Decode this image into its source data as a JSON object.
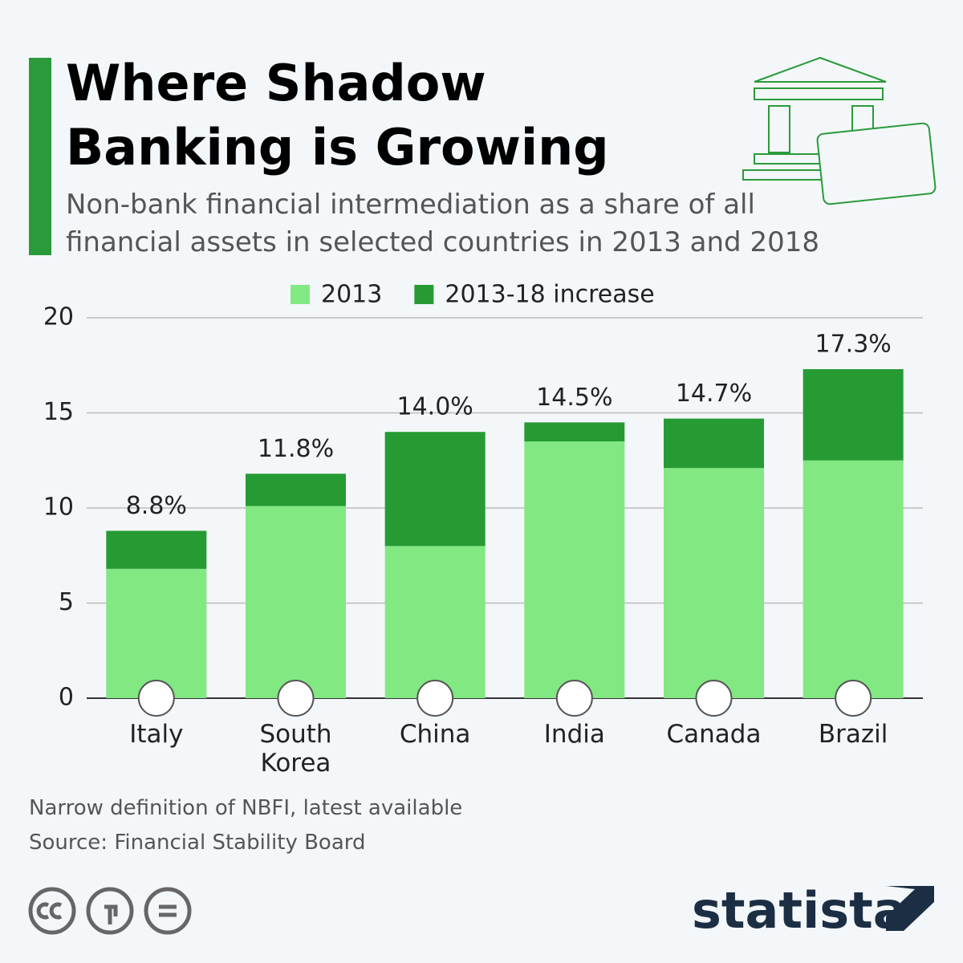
{
  "title": "Where Shadow Banking is Growing",
  "subtitle": "Non-bank financial intermediation as a share of all financial assets in selected countries in 2013 and 2018",
  "chart_data": {
    "type": "stacked_bar",
    "categories": [
      "Italy",
      "South Korea",
      "China",
      "India",
      "Canada",
      "Brazil"
    ],
    "series": [
      {
        "name": "2013",
        "color": "#82e882",
        "values": [
          6.8,
          10.1,
          8.0,
          13.5,
          12.1,
          12.5
        ]
      },
      {
        "name": "2013-18 increase",
        "color": "#269b34",
        "values": [
          2.0,
          1.7,
          6.0,
          1.0,
          2.6,
          4.8
        ]
      }
    ],
    "totals": [
      8.8,
      11.8,
      14.0,
      14.5,
      14.7,
      17.3
    ],
    "total_labels": [
      "8.8%",
      "11.8%",
      "14.0%",
      "14.5%",
      "14.7%",
      "17.3%"
    ],
    "ylim": [
      0,
      20
    ],
    "yticks": [
      0,
      5,
      10,
      15,
      20
    ],
    "grid": true,
    "legend": "top"
  },
  "notes": [
    "Narrow definition of NBFI, latest available",
    "Source: Financial Stability Board"
  ],
  "brand": "statista"
}
